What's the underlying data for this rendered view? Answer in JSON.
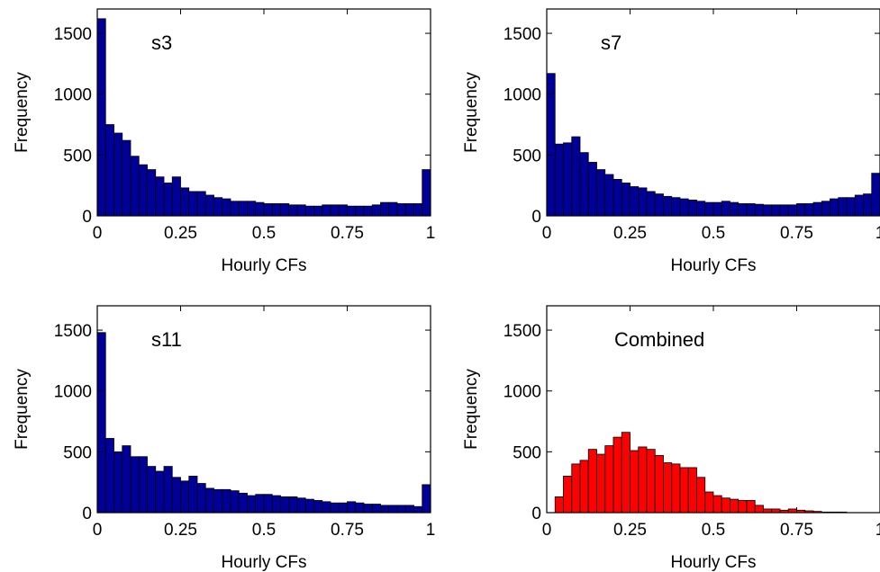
{
  "chart_data": [
    {
      "type": "bar",
      "label": "s3",
      "xlabel": "Hourly CFs",
      "ylabel": "Frequency",
      "xlim": [
        0,
        1
      ],
      "ylim": [
        0,
        1700
      ],
      "xticks": [
        0,
        0.25,
        0.5,
        0.75,
        1
      ],
      "xtick_labels": [
        "0",
        "0.25",
        "0.5",
        "0.75",
        "1"
      ],
      "yticks": [
        0,
        500,
        1000,
        1500
      ],
      "ytick_labels": [
        "0",
        "500",
        "1000",
        "1500"
      ],
      "bin_width": 0.025,
      "values": [
        1620,
        750,
        680,
        620,
        490,
        420,
        380,
        320,
        270,
        320,
        230,
        200,
        200,
        170,
        150,
        140,
        120,
        120,
        120,
        110,
        100,
        100,
        100,
        90,
        90,
        80,
        80,
        90,
        90,
        90,
        80,
        80,
        80,
        90,
        110,
        110,
        100,
        100,
        100,
        380
      ],
      "color": "#000099"
    },
    {
      "type": "bar",
      "label": "s7",
      "xlabel": "Hourly CFs",
      "ylabel": "Frequency",
      "xlim": [
        0,
        1
      ],
      "ylim": [
        0,
        1700
      ],
      "xticks": [
        0,
        0.25,
        0.5,
        0.75,
        1
      ],
      "xtick_labels": [
        "0",
        "0.25",
        "0.5",
        "0.75",
        "1"
      ],
      "yticks": [
        0,
        500,
        1000,
        1500
      ],
      "ytick_labels": [
        "0",
        "500",
        "1000",
        "1500"
      ],
      "bin_width": 0.025,
      "values": [
        1170,
        590,
        600,
        650,
        520,
        440,
        380,
        340,
        300,
        270,
        240,
        230,
        200,
        180,
        160,
        150,
        140,
        130,
        120,
        110,
        110,
        120,
        110,
        100,
        100,
        95,
        90,
        90,
        90,
        90,
        100,
        100,
        110,
        120,
        140,
        150,
        150,
        170,
        180,
        350
      ],
      "color": "#000099"
    },
    {
      "type": "bar",
      "label": "s11",
      "xlabel": "Hourly CFs",
      "ylabel": "Frequency",
      "xlim": [
        0,
        1
      ],
      "ylim": [
        0,
        1700
      ],
      "xticks": [
        0,
        0.25,
        0.5,
        0.75,
        1
      ],
      "xtick_labels": [
        "0",
        "0.25",
        "0.5",
        "0.75",
        "1"
      ],
      "yticks": [
        0,
        500,
        1000,
        1500
      ],
      "ytick_labels": [
        "0",
        "500",
        "1000",
        "1500"
      ],
      "bin_width": 0.025,
      "values": [
        1480,
        610,
        500,
        550,
        460,
        460,
        380,
        340,
        380,
        290,
        260,
        300,
        240,
        200,
        190,
        190,
        180,
        160,
        140,
        150,
        150,
        140,
        130,
        130,
        120,
        110,
        100,
        90,
        80,
        80,
        90,
        80,
        70,
        70,
        60,
        60,
        60,
        60,
        50,
        230
      ],
      "color": "#000099"
    },
    {
      "type": "bar",
      "label": "Combined",
      "xlabel": "Hourly CFs",
      "ylabel": "Frequency",
      "xlim": [
        0,
        1
      ],
      "ylim": [
        0,
        1700
      ],
      "xticks": [
        0,
        0.25,
        0.5,
        0.75,
        1
      ],
      "xtick_labels": [
        "0",
        "0.25",
        "0.5",
        "0.75",
        "1"
      ],
      "yticks": [
        0,
        500,
        1000,
        1500
      ],
      "ytick_labels": [
        "0",
        "500",
        "1000",
        "1500"
      ],
      "bin_width": 0.025,
      "values": [
        0,
        130,
        300,
        400,
        430,
        520,
        480,
        550,
        620,
        660,
        510,
        540,
        520,
        470,
        410,
        400,
        370,
        370,
        290,
        170,
        140,
        120,
        110,
        100,
        100,
        60,
        30,
        30,
        20,
        30,
        20,
        15,
        10,
        5,
        5,
        5,
        0,
        0,
        0,
        0
      ],
      "color": "#ff0000"
    }
  ]
}
